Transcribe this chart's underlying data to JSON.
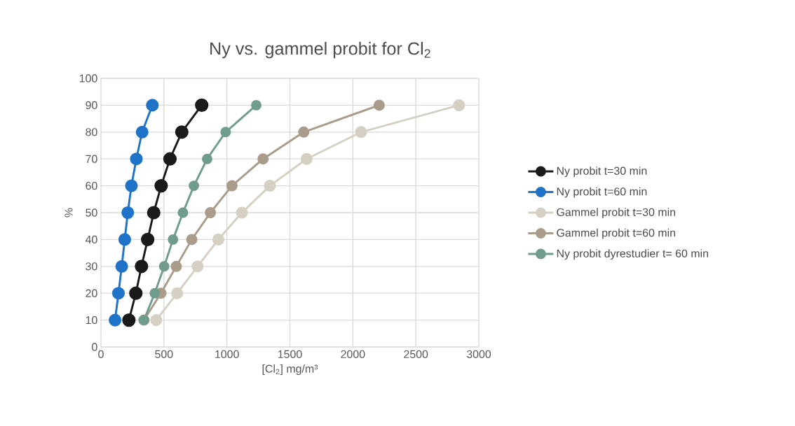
{
  "chart_data": {
    "type": "line",
    "title": "Ny vs. gammel probit for Cl$_{2}$",
    "xlabel": "[Cl$_{2}$] mg/m³",
    "ylabel": "%",
    "xlim": [
      0,
      3000
    ],
    "xticks": [
      0,
      500,
      1000,
      1500,
      2000,
      2500,
      3000
    ],
    "ylim": [
      0,
      100
    ],
    "yticks": [
      0,
      10,
      20,
      30,
      40,
      50,
      60,
      70,
      80,
      90,
      100
    ],
    "grid": true,
    "legend": "right",
    "marker": "circle",
    "line_style": "solid",
    "series": [
      {
        "name": "Ny probit t=30 min",
        "color": "#1a1a1a",
        "x": [
          222,
          277,
          322,
          371,
          419,
          478,
          548,
          642,
          800
        ],
        "values": [
          10,
          20,
          30,
          40,
          50,
          60,
          70,
          80,
          90
        ]
      },
      {
        "name": "Ny probit t=60 min",
        "color": "#1f73c8",
        "x": [
          112,
          139,
          165,
          189,
          213,
          242,
          281,
          327,
          408
        ],
        "values": [
          10,
          20,
          30,
          40,
          50,
          60,
          70,
          80,
          90
        ]
      },
      {
        "name": "Gammel probit t=30 min",
        "color": "#d6d0c4",
        "x": [
          439,
          605,
          767,
          932,
          1119,
          1341,
          1633,
          2065,
          2843
        ],
        "values": [
          10,
          20,
          30,
          40,
          50,
          60,
          70,
          80,
          90
        ]
      },
      {
        "name": "Gammel probit t=60 min",
        "color": "#aa9c8a",
        "x": [
          341,
          476,
          598,
          721,
          869,
          1040,
          1287,
          1610,
          2209
        ],
        "values": [
          10,
          20,
          30,
          40,
          50,
          60,
          70,
          80,
          90
        ]
      },
      {
        "name": "Ny probit dyrestudier t= 60 min",
        "color": "#709c8e",
        "x": [
          341,
          427,
          502,
          572,
          651,
          738,
          843,
          990,
          1233
        ],
        "values": [
          10,
          20,
          30,
          40,
          50,
          60,
          70,
          80,
          90
        ]
      }
    ]
  }
}
